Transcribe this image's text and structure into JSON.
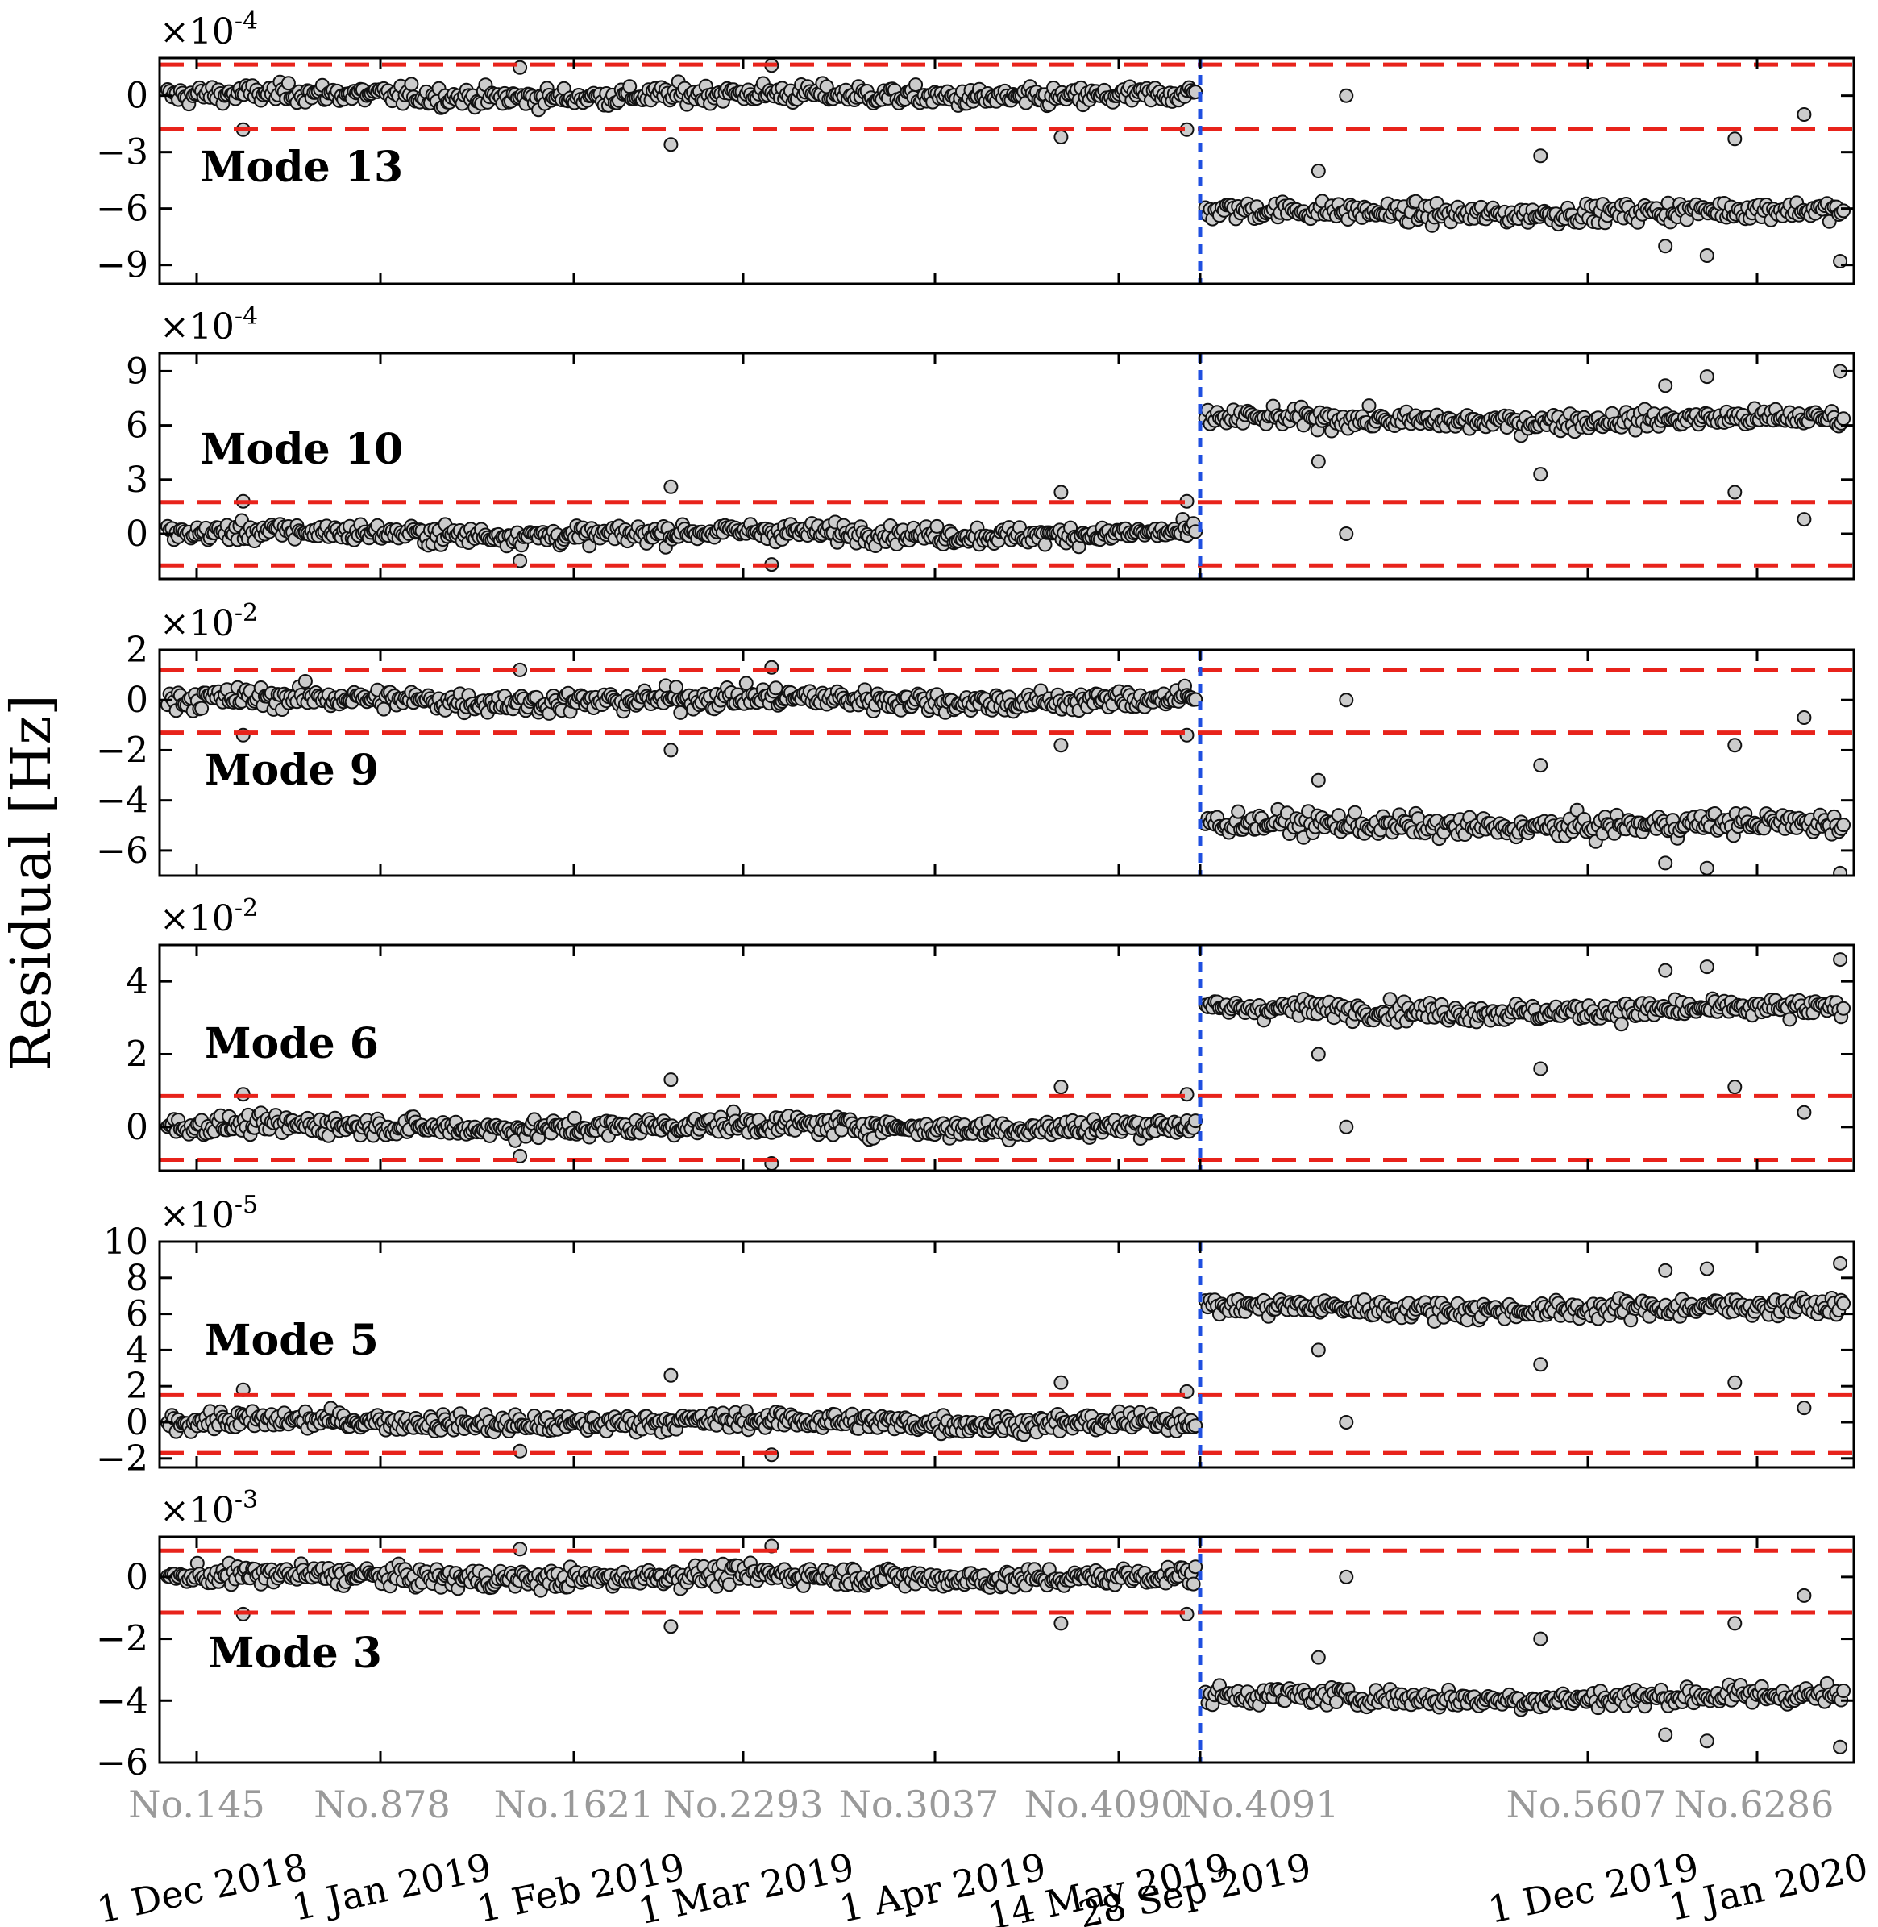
{
  "figure": {
    "ylabel": "Residual [Hz]",
    "colors": {
      "threshold": "#e8231b",
      "change_marker": "#1f4fe0",
      "point_fill": "#cccccc",
      "point_edge": "#111111",
      "frame": "#000000",
      "index_label": "#9a9a9a"
    },
    "x_axis": {
      "index_labels": [
        "No.145",
        "No.878",
        "No.1621",
        "No.2293",
        "No.3037",
        "No.4090",
        "No.4091",
        "No.5607",
        "No.6286"
      ],
      "date_labels": [
        "1 Dec 2018",
        "1 Jan 2019",
        "1 Feb 2019",
        "1 Mar 2019",
        "1 Apr 2019",
        "14 May 2019",
        "28 Sep 2019",
        "1 Dec 2019",
        "1 Jan 2020"
      ]
    }
  },
  "chart_data": [
    {
      "type": "scatter",
      "label": "Mode 13",
      "multiplier": "×10",
      "exponent": "-4",
      "ylim": [
        -10,
        2
      ],
      "yticks": [
        -9,
        -6,
        -3,
        0
      ],
      "ytick_labels": [
        "−9",
        "−6",
        "−3",
        "0"
      ],
      "thresholds": [
        1.65,
        -1.75
      ],
      "sample_range": [
        0,
        6400
      ],
      "change_at": 4091,
      "level_before": 0,
      "level_after": -6.2,
      "spread": 0.35,
      "outliers": [
        {
          "x": 300,
          "y": -1.8
        },
        {
          "x": 1400,
          "y": 1.5
        },
        {
          "x": 2000,
          "y": -2.6
        },
        {
          "x": 2400,
          "y": 1.6
        },
        {
          "x": 3550,
          "y": -2.2
        },
        {
          "x": 4050,
          "y": -1.8
        },
        {
          "x": 4600,
          "y": 0
        },
        {
          "x": 4500,
          "y": -4
        },
        {
          "x": 5300,
          "y": -3.2
        },
        {
          "x": 5750,
          "y": -8.0
        },
        {
          "x": 5900,
          "y": -8.5
        },
        {
          "x": 6000,
          "y": -2.3
        },
        {
          "x": 6250,
          "y": -1.0
        },
        {
          "x": 6380,
          "y": -8.8
        }
      ]
    },
    {
      "type": "scatter",
      "label": "Mode 10",
      "multiplier": "×10",
      "exponent": "-4",
      "ylim": [
        -2.5,
        10
      ],
      "yticks": [
        0,
        3,
        6,
        9
      ],
      "ytick_labels": [
        "0",
        "3",
        "6",
        "9"
      ],
      "thresholds": [
        1.75,
        -1.75
      ],
      "sample_range": [
        0,
        6400
      ],
      "change_at": 4091,
      "level_before": 0,
      "level_after": 6.3,
      "spread": 0.35,
      "outliers": [
        {
          "x": 300,
          "y": 1.8
        },
        {
          "x": 1400,
          "y": -1.5
        },
        {
          "x": 2000,
          "y": 2.6
        },
        {
          "x": 2400,
          "y": -1.7
        },
        {
          "x": 3550,
          "y": 2.3
        },
        {
          "x": 4050,
          "y": 1.8
        },
        {
          "x": 4600,
          "y": 0
        },
        {
          "x": 4500,
          "y": 4
        },
        {
          "x": 5300,
          "y": 3.3
        },
        {
          "x": 5750,
          "y": 8.2
        },
        {
          "x": 5900,
          "y": 8.7
        },
        {
          "x": 6000,
          "y": 2.3
        },
        {
          "x": 6250,
          "y": 0.8
        },
        {
          "x": 6380,
          "y": 9.0
        }
      ]
    },
    {
      "type": "scatter",
      "label": "Mode 9",
      "multiplier": "×10",
      "exponent": "-2",
      "ylim": [
        -7,
        2
      ],
      "yticks": [
        -6,
        -4,
        -2,
        0,
        2
      ],
      "ytick_labels": [
        "−6",
        "−4",
        "−2",
        "0",
        "2"
      ],
      "thresholds": [
        1.2,
        -1.3
      ],
      "sample_range": [
        0,
        6400
      ],
      "change_at": 4091,
      "level_before": 0,
      "level_after": -5.0,
      "spread": 0.3,
      "outliers": [
        {
          "x": 300,
          "y": -1.4
        },
        {
          "x": 1400,
          "y": 1.2
        },
        {
          "x": 2000,
          "y": -2.0
        },
        {
          "x": 2400,
          "y": 1.3
        },
        {
          "x": 3550,
          "y": -1.8
        },
        {
          "x": 4050,
          "y": -1.4
        },
        {
          "x": 4600,
          "y": 0
        },
        {
          "x": 4500,
          "y": -3.2
        },
        {
          "x": 5300,
          "y": -2.6
        },
        {
          "x": 5750,
          "y": -6.5
        },
        {
          "x": 5900,
          "y": -6.7
        },
        {
          "x": 6000,
          "y": -1.8
        },
        {
          "x": 6250,
          "y": -0.7
        },
        {
          "x": 6380,
          "y": -6.9
        }
      ]
    },
    {
      "type": "scatter",
      "label": "Mode 6",
      "multiplier": "×10",
      "exponent": "-2",
      "ylim": [
        -1.2,
        5
      ],
      "yticks": [
        0,
        2,
        4
      ],
      "ytick_labels": [
        "0",
        "2",
        "4"
      ],
      "thresholds": [
        0.85,
        -0.9
      ],
      "sample_range": [
        0,
        6400
      ],
      "change_at": 4091,
      "level_before": 0,
      "level_after": 3.2,
      "spread": 0.18,
      "outliers": [
        {
          "x": 300,
          "y": 0.9
        },
        {
          "x": 1400,
          "y": -0.8
        },
        {
          "x": 2000,
          "y": 1.3
        },
        {
          "x": 2400,
          "y": -1.0
        },
        {
          "x": 3550,
          "y": 1.1
        },
        {
          "x": 4050,
          "y": 0.9
        },
        {
          "x": 4600,
          "y": 0
        },
        {
          "x": 4500,
          "y": 2.0
        },
        {
          "x": 5300,
          "y": 1.6
        },
        {
          "x": 5750,
          "y": 4.3
        },
        {
          "x": 5900,
          "y": 4.4
        },
        {
          "x": 6000,
          "y": 1.1
        },
        {
          "x": 6250,
          "y": 0.4
        },
        {
          "x": 6380,
          "y": 4.6
        }
      ]
    },
    {
      "type": "scatter",
      "label": "Mode 5",
      "multiplier": "×10",
      "exponent": "-5",
      "ylim": [
        -2.5,
        10
      ],
      "yticks": [
        -2,
        0,
        2,
        4,
        6,
        8,
        10
      ],
      "ytick_labels": [
        "−2",
        "0",
        "2",
        "4",
        "6",
        "8",
        "10"
      ],
      "thresholds": [
        1.5,
        -1.7
      ],
      "sample_range": [
        0,
        6400
      ],
      "change_at": 4091,
      "level_before": 0,
      "level_after": 6.3,
      "spread": 0.35,
      "outliers": [
        {
          "x": 300,
          "y": 1.8
        },
        {
          "x": 1400,
          "y": -1.6
        },
        {
          "x": 2000,
          "y": 2.6
        },
        {
          "x": 2400,
          "y": -1.8
        },
        {
          "x": 3550,
          "y": 2.2
        },
        {
          "x": 4050,
          "y": 1.7
        },
        {
          "x": 4600,
          "y": 0
        },
        {
          "x": 4500,
          "y": 4
        },
        {
          "x": 5300,
          "y": 3.2
        },
        {
          "x": 5750,
          "y": 8.4
        },
        {
          "x": 5900,
          "y": 8.5
        },
        {
          "x": 6000,
          "y": 2.2
        },
        {
          "x": 6250,
          "y": 0.8
        },
        {
          "x": 6380,
          "y": 8.8
        }
      ]
    },
    {
      "type": "scatter",
      "label": "Mode 3",
      "multiplier": "×10",
      "exponent": "-3",
      "ylim": [
        -6,
        1.3
      ],
      "yticks": [
        -6,
        -4,
        -2,
        0
      ],
      "ytick_labels": [
        "−6",
        "−4",
        "−2",
        "0"
      ],
      "thresholds": [
        0.85,
        -1.15
      ],
      "sample_range": [
        0,
        6400
      ],
      "change_at": 4091,
      "level_before": 0,
      "level_after": -3.9,
      "spread": 0.22,
      "outliers": [
        {
          "x": 300,
          "y": -1.2
        },
        {
          "x": 1400,
          "y": 0.9
        },
        {
          "x": 2000,
          "y": -1.6
        },
        {
          "x": 2400,
          "y": 1.0
        },
        {
          "x": 3550,
          "y": -1.5
        },
        {
          "x": 4050,
          "y": -1.2
        },
        {
          "x": 4600,
          "y": 0
        },
        {
          "x": 4500,
          "y": -2.6
        },
        {
          "x": 5300,
          "y": -2.0
        },
        {
          "x": 5750,
          "y": -5.1
        },
        {
          "x": 5900,
          "y": -5.3
        },
        {
          "x": 6000,
          "y": -1.5
        },
        {
          "x": 6250,
          "y": -0.6
        },
        {
          "x": 6380,
          "y": -5.5
        }
      ]
    }
  ]
}
